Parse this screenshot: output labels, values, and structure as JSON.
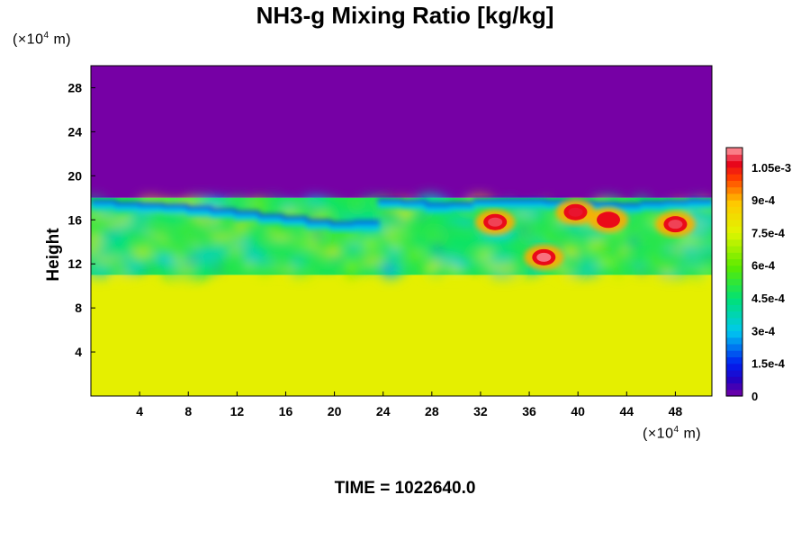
{
  "chart_data": {
    "type": "heatmap",
    "title": "NH3-g Mixing Ratio [kg/kg]",
    "xlabel": "",
    "ylabel": "Height",
    "x_unit_prefix": "(×10",
    "x_unit_exp": "4",
    "x_unit_suffix": " m)",
    "y_unit_prefix": "(×10",
    "y_unit_exp": "4",
    "y_unit_suffix": " m)",
    "xlim": [
      0,
      51
    ],
    "ylim": [
      0,
      30
    ],
    "x_ticks": [
      4,
      8,
      12,
      16,
      20,
      24,
      28,
      32,
      36,
      40,
      44,
      48
    ],
    "y_ticks": [
      4,
      8,
      12,
      16,
      20,
      24,
      28
    ],
    "colorbar": {
      "range": [
        0,
        0.00114
      ],
      "tick_values": [
        0,
        0.00015,
        0.0003,
        0.00045,
        0.0006,
        0.00075,
        0.0009,
        0.00105
      ],
      "tick_labels": [
        "0",
        "1.5e-4",
        "3e-4",
        "4.5e-4",
        "6e-4",
        "7.5e-4",
        "9e-4",
        "1.05e-3"
      ]
    },
    "field_regions": [
      {
        "name": "lower layer",
        "x": [
          0,
          51
        ],
        "y": [
          0,
          11
        ],
        "value": 0.00077
      },
      {
        "name": "upper layer",
        "x": [
          0,
          51
        ],
        "y": [
          18,
          30
        ],
        "value": 0.0
      },
      {
        "name": "transition band",
        "x": [
          0,
          51
        ],
        "y": [
          11,
          18
        ],
        "value": 0.0005
      }
    ],
    "hotspots": [
      {
        "x": 37.2,
        "y": 12.6,
        "value": 0.00112
      },
      {
        "x": 33.2,
        "y": 15.8,
        "value": 0.0011
      },
      {
        "x": 39.8,
        "y": 16.7,
        "value": 0.00108
      },
      {
        "x": 42.5,
        "y": 16.0,
        "value": 0.00106
      },
      {
        "x": 48.0,
        "y": 15.6,
        "value": 0.0011
      }
    ]
  },
  "time_label": "TIME = 1022640.0"
}
